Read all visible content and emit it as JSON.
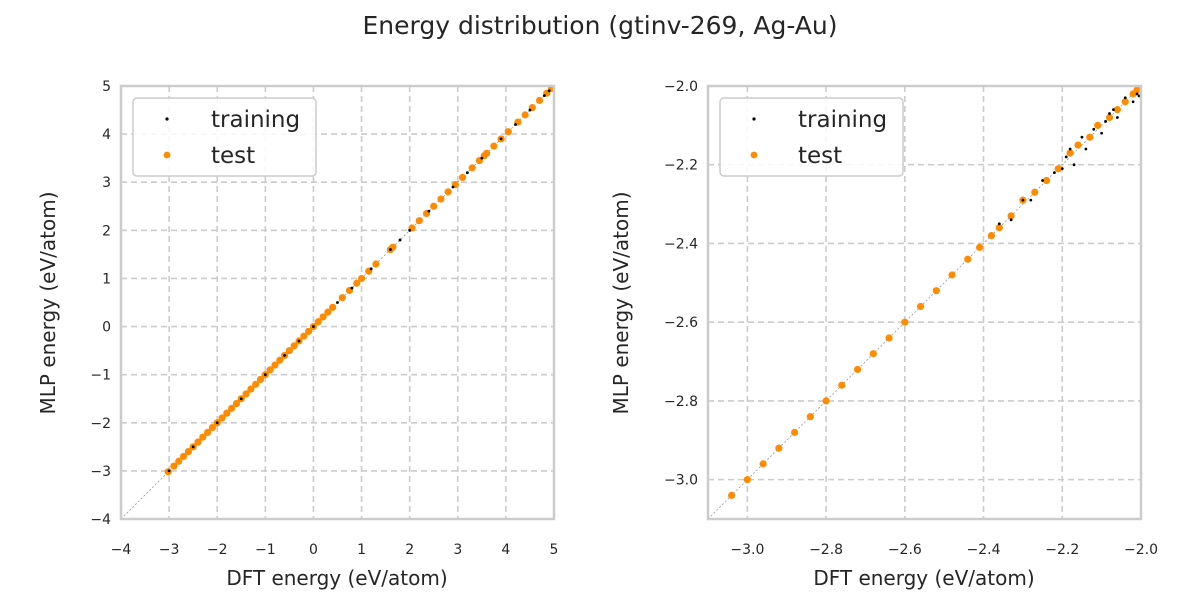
{
  "figure": {
    "title": "Energy distribution (gtinv-269, Ag-Au)"
  },
  "colors": {
    "training": "#000000",
    "test": "#ff8c00",
    "grid": "#cccccc",
    "spine": "#cccccc",
    "diagonal": "#999999"
  },
  "chart_data": [
    {
      "type": "scatter",
      "xlabel": "DFT energy (eV/atom)",
      "ylabel": "MLP energy (eV/atom)",
      "xlim": [
        -4,
        5
      ],
      "ylim": [
        -4,
        5
      ],
      "xticks": [
        -4,
        -3,
        -2,
        -1,
        0,
        1,
        2,
        3,
        4,
        5
      ],
      "yticks": [
        -4,
        -3,
        -2,
        -1,
        0,
        1,
        2,
        3,
        4,
        5
      ],
      "grid": true,
      "legend_position": "upper-left",
      "diagonal": true,
      "series": [
        {
          "name": "training",
          "color": "#000000",
          "points": [
            [
              -3.0,
              -3.0
            ],
            [
              -2.5,
              -2.5
            ],
            [
              -2.0,
              -2.0
            ],
            [
              -1.5,
              -1.5
            ],
            [
              -1.0,
              -1.0
            ],
            [
              -0.6,
              -0.6
            ],
            [
              -0.3,
              -0.3
            ],
            [
              0.0,
              0.0
            ],
            [
              0.5,
              0.5
            ],
            [
              0.8,
              0.8
            ],
            [
              1.2,
              1.2
            ],
            [
              1.6,
              1.6
            ],
            [
              1.8,
              1.8
            ],
            [
              2.0,
              2.0
            ],
            [
              2.4,
              2.4
            ],
            [
              2.9,
              2.9
            ],
            [
              3.2,
              3.2
            ],
            [
              3.5,
              3.5
            ],
            [
              3.9,
              3.9
            ],
            [
              4.2,
              4.2
            ],
            [
              4.5,
              4.5
            ],
            [
              4.8,
              4.8
            ],
            [
              4.9,
              4.9
            ]
          ]
        },
        {
          "name": "test",
          "color": "#ff8c00",
          "points": [
            [
              -3.02,
              -3.02
            ],
            [
              -2.9,
              -2.9
            ],
            [
              -2.8,
              -2.8
            ],
            [
              -2.7,
              -2.7
            ],
            [
              -2.6,
              -2.6
            ],
            [
              -2.5,
              -2.5
            ],
            [
              -2.4,
              -2.4
            ],
            [
              -2.3,
              -2.3
            ],
            [
              -2.2,
              -2.2
            ],
            [
              -2.1,
              -2.1
            ],
            [
              -2.0,
              -2.0
            ],
            [
              -1.9,
              -1.9
            ],
            [
              -1.8,
              -1.8
            ],
            [
              -1.7,
              -1.7
            ],
            [
              -1.6,
              -1.6
            ],
            [
              -1.5,
              -1.5
            ],
            [
              -1.4,
              -1.4
            ],
            [
              -1.3,
              -1.3
            ],
            [
              -1.2,
              -1.2
            ],
            [
              -1.1,
              -1.1
            ],
            [
              -1.0,
              -1.0
            ],
            [
              -0.9,
              -0.9
            ],
            [
              -0.8,
              -0.8
            ],
            [
              -0.7,
              -0.7
            ],
            [
              -0.6,
              -0.6
            ],
            [
              -0.5,
              -0.5
            ],
            [
              -0.4,
              -0.4
            ],
            [
              -0.3,
              -0.3
            ],
            [
              -0.2,
              -0.2
            ],
            [
              -0.1,
              -0.1
            ],
            [
              0.0,
              0.0
            ],
            [
              0.1,
              0.1
            ],
            [
              0.2,
              0.2
            ],
            [
              0.3,
              0.3
            ],
            [
              0.4,
              0.4
            ],
            [
              0.6,
              0.6
            ],
            [
              0.75,
              0.75
            ],
            [
              0.9,
              0.9
            ],
            [
              1.0,
              1.0
            ],
            [
              1.15,
              1.15
            ],
            [
              1.3,
              1.3
            ],
            [
              1.6,
              1.6
            ],
            [
              1.65,
              1.65
            ],
            [
              2.05,
              2.05
            ],
            [
              2.2,
              2.2
            ],
            [
              2.35,
              2.35
            ],
            [
              2.5,
              2.5
            ],
            [
              2.65,
              2.65
            ],
            [
              2.8,
              2.8
            ],
            [
              2.95,
              2.95
            ],
            [
              3.1,
              3.1
            ],
            [
              3.3,
              3.3
            ],
            [
              3.45,
              3.45
            ],
            [
              3.55,
              3.55
            ],
            [
              3.6,
              3.6
            ],
            [
              3.75,
              3.75
            ],
            [
              3.9,
              3.9
            ],
            [
              4.05,
              4.05
            ],
            [
              4.25,
              4.25
            ],
            [
              4.4,
              4.4
            ],
            [
              4.55,
              4.55
            ],
            [
              4.7,
              4.7
            ],
            [
              4.85,
              4.85
            ],
            [
              4.95,
              4.95
            ]
          ]
        }
      ]
    },
    {
      "type": "scatter",
      "xlabel": "DFT energy (eV/atom)",
      "ylabel": "MLP energy (eV/atom)",
      "xlim": [
        -3.1,
        -2.0
      ],
      "ylim": [
        -3.1,
        -2.0
      ],
      "xticks": [
        -3.0,
        -2.8,
        -2.6,
        -2.4,
        -2.2,
        -2.0
      ],
      "yticks": [
        -3.0,
        -2.8,
        -2.6,
        -2.4,
        -2.2,
        -2.0
      ],
      "grid": true,
      "legend_position": "upper-left",
      "diagonal": true,
      "series": [
        {
          "name": "training",
          "color": "#000000",
          "points": [
            [
              -2.3,
              -2.29
            ],
            [
              -2.28,
              -2.29
            ],
            [
              -2.25,
              -2.24
            ],
            [
              -2.2,
              -2.21
            ],
            [
              -2.18,
              -2.16
            ],
            [
              -2.17,
              -2.2
            ],
            [
              -2.15,
              -2.13
            ],
            [
              -2.14,
              -2.16
            ],
            [
              -2.12,
              -2.11
            ],
            [
              -2.1,
              -2.12
            ],
            [
              -2.08,
              -2.07
            ],
            [
              -2.06,
              -2.08
            ],
            [
              -2.04,
              -2.03
            ],
            [
              -2.02,
              -2.04
            ],
            [
              -2.01,
              -2.02
            ],
            [
              -2.005,
              -2.025
            ],
            [
              -2.36,
              -2.35
            ],
            [
              -2.33,
              -2.34
            ],
            [
              -2.22,
              -2.22
            ],
            [
              -2.19,
              -2.18
            ],
            [
              -2.09,
              -2.09
            ],
            [
              -2.07,
              -2.06
            ]
          ]
        },
        {
          "name": "test",
          "color": "#ff8c00",
          "points": [
            [
              -3.04,
              -3.04
            ],
            [
              -3.0,
              -3.0
            ],
            [
              -2.96,
              -2.96
            ],
            [
              -2.92,
              -2.92
            ],
            [
              -2.88,
              -2.88
            ],
            [
              -2.84,
              -2.84
            ],
            [
              -2.8,
              -2.8
            ],
            [
              -2.76,
              -2.76
            ],
            [
              -2.72,
              -2.72
            ],
            [
              -2.68,
              -2.68
            ],
            [
              -2.64,
              -2.64
            ],
            [
              -2.6,
              -2.6
            ],
            [
              -2.56,
              -2.56
            ],
            [
              -2.52,
              -2.52
            ],
            [
              -2.48,
              -2.48
            ],
            [
              -2.44,
              -2.44
            ],
            [
              -2.41,
              -2.41
            ],
            [
              -2.38,
              -2.38
            ],
            [
              -2.36,
              -2.36
            ],
            [
              -2.33,
              -2.33
            ],
            [
              -2.3,
              -2.29
            ],
            [
              -2.27,
              -2.27
            ],
            [
              -2.24,
              -2.24
            ],
            [
              -2.21,
              -2.21
            ],
            [
              -2.18,
              -2.17
            ],
            [
              -2.16,
              -2.15
            ],
            [
              -2.13,
              -2.13
            ],
            [
              -2.11,
              -2.1
            ],
            [
              -2.08,
              -2.08
            ],
            [
              -2.06,
              -2.06
            ],
            [
              -2.04,
              -2.04
            ],
            [
              -2.02,
              -2.02
            ],
            [
              -2.01,
              -2.01
            ]
          ]
        }
      ]
    }
  ]
}
